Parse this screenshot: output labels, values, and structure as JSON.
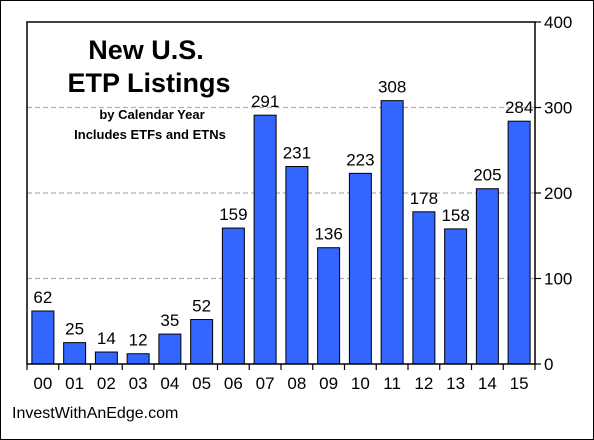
{
  "chart_data": {
    "type": "bar",
    "title_lines": [
      "New U.S.",
      "ETP  Listings"
    ],
    "subtitle_lines": [
      "by Calendar Year",
      "Includes ETFs and ETNs"
    ],
    "categories": [
      "00",
      "01",
      "02",
      "03",
      "04",
      "05",
      "06",
      "07",
      "08",
      "09",
      "10",
      "11",
      "12",
      "13",
      "14",
      "15"
    ],
    "values": [
      62,
      25,
      14,
      12,
      35,
      52,
      159,
      291,
      231,
      136,
      223,
      308,
      178,
      158,
      205,
      284
    ],
    "ylim": [
      0,
      400
    ],
    "yticks": [
      0,
      100,
      200,
      300,
      400
    ],
    "xlabel": "",
    "ylabel": "",
    "grid": "horizontal dashed",
    "bar_color": "#3366ff",
    "grid_color": "#b0b0b0"
  },
  "source": "InvestWithAnEdge.com"
}
